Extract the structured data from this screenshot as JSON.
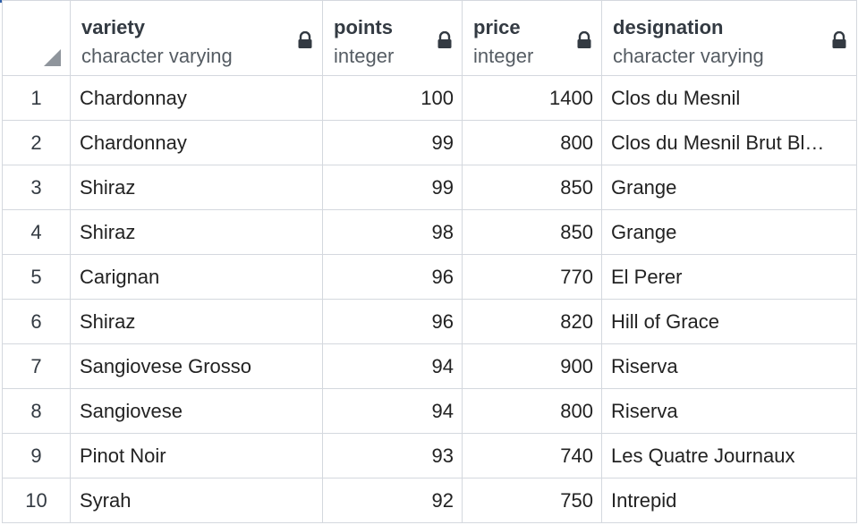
{
  "columns": [
    {
      "name": "variety",
      "type": "character varying",
      "locked": true
    },
    {
      "name": "points",
      "type": "integer",
      "locked": true
    },
    {
      "name": "price",
      "type": "integer",
      "locked": true
    },
    {
      "name": "designation",
      "type": "character varying",
      "locked": true
    }
  ],
  "rows": [
    {
      "row": "1",
      "variety": "Chardonnay",
      "points": "100",
      "price": "1400",
      "designation": "Clos du Mesnil"
    },
    {
      "row": "2",
      "variety": "Chardonnay",
      "points": "99",
      "price": "800",
      "designation": "Clos du Mesnil Brut Bl…"
    },
    {
      "row": "3",
      "variety": "Shiraz",
      "points": "99",
      "price": "850",
      "designation": "Grange"
    },
    {
      "row": "4",
      "variety": "Shiraz",
      "points": "98",
      "price": "850",
      "designation": "Grange"
    },
    {
      "row": "5",
      "variety": "Carignan",
      "points": "96",
      "price": "770",
      "designation": "El Perer"
    },
    {
      "row": "6",
      "variety": "Shiraz",
      "points": "96",
      "price": "820",
      "designation": "Hill of Grace"
    },
    {
      "row": "7",
      "variety": "Sangiovese Grosso",
      "points": "94",
      "price": "900",
      "designation": "Riserva"
    },
    {
      "row": "8",
      "variety": "Sangiovese",
      "points": "94",
      "price": "800",
      "designation": "Riserva"
    },
    {
      "row": "9",
      "variety": "Pinot Noir",
      "points": "93",
      "price": "740",
      "designation": "Les Quatre Journaux"
    },
    {
      "row": "10",
      "variety": "Syrah",
      "points": "92",
      "price": "750",
      "designation": "Intrepid"
    }
  ],
  "icons": {
    "lock": "lock-icon",
    "corner": "select-all-corner"
  },
  "colors": {
    "grid_line": "#d4d8de",
    "accent_tab": "#2f5fa8",
    "lock": "#333a42"
  }
}
